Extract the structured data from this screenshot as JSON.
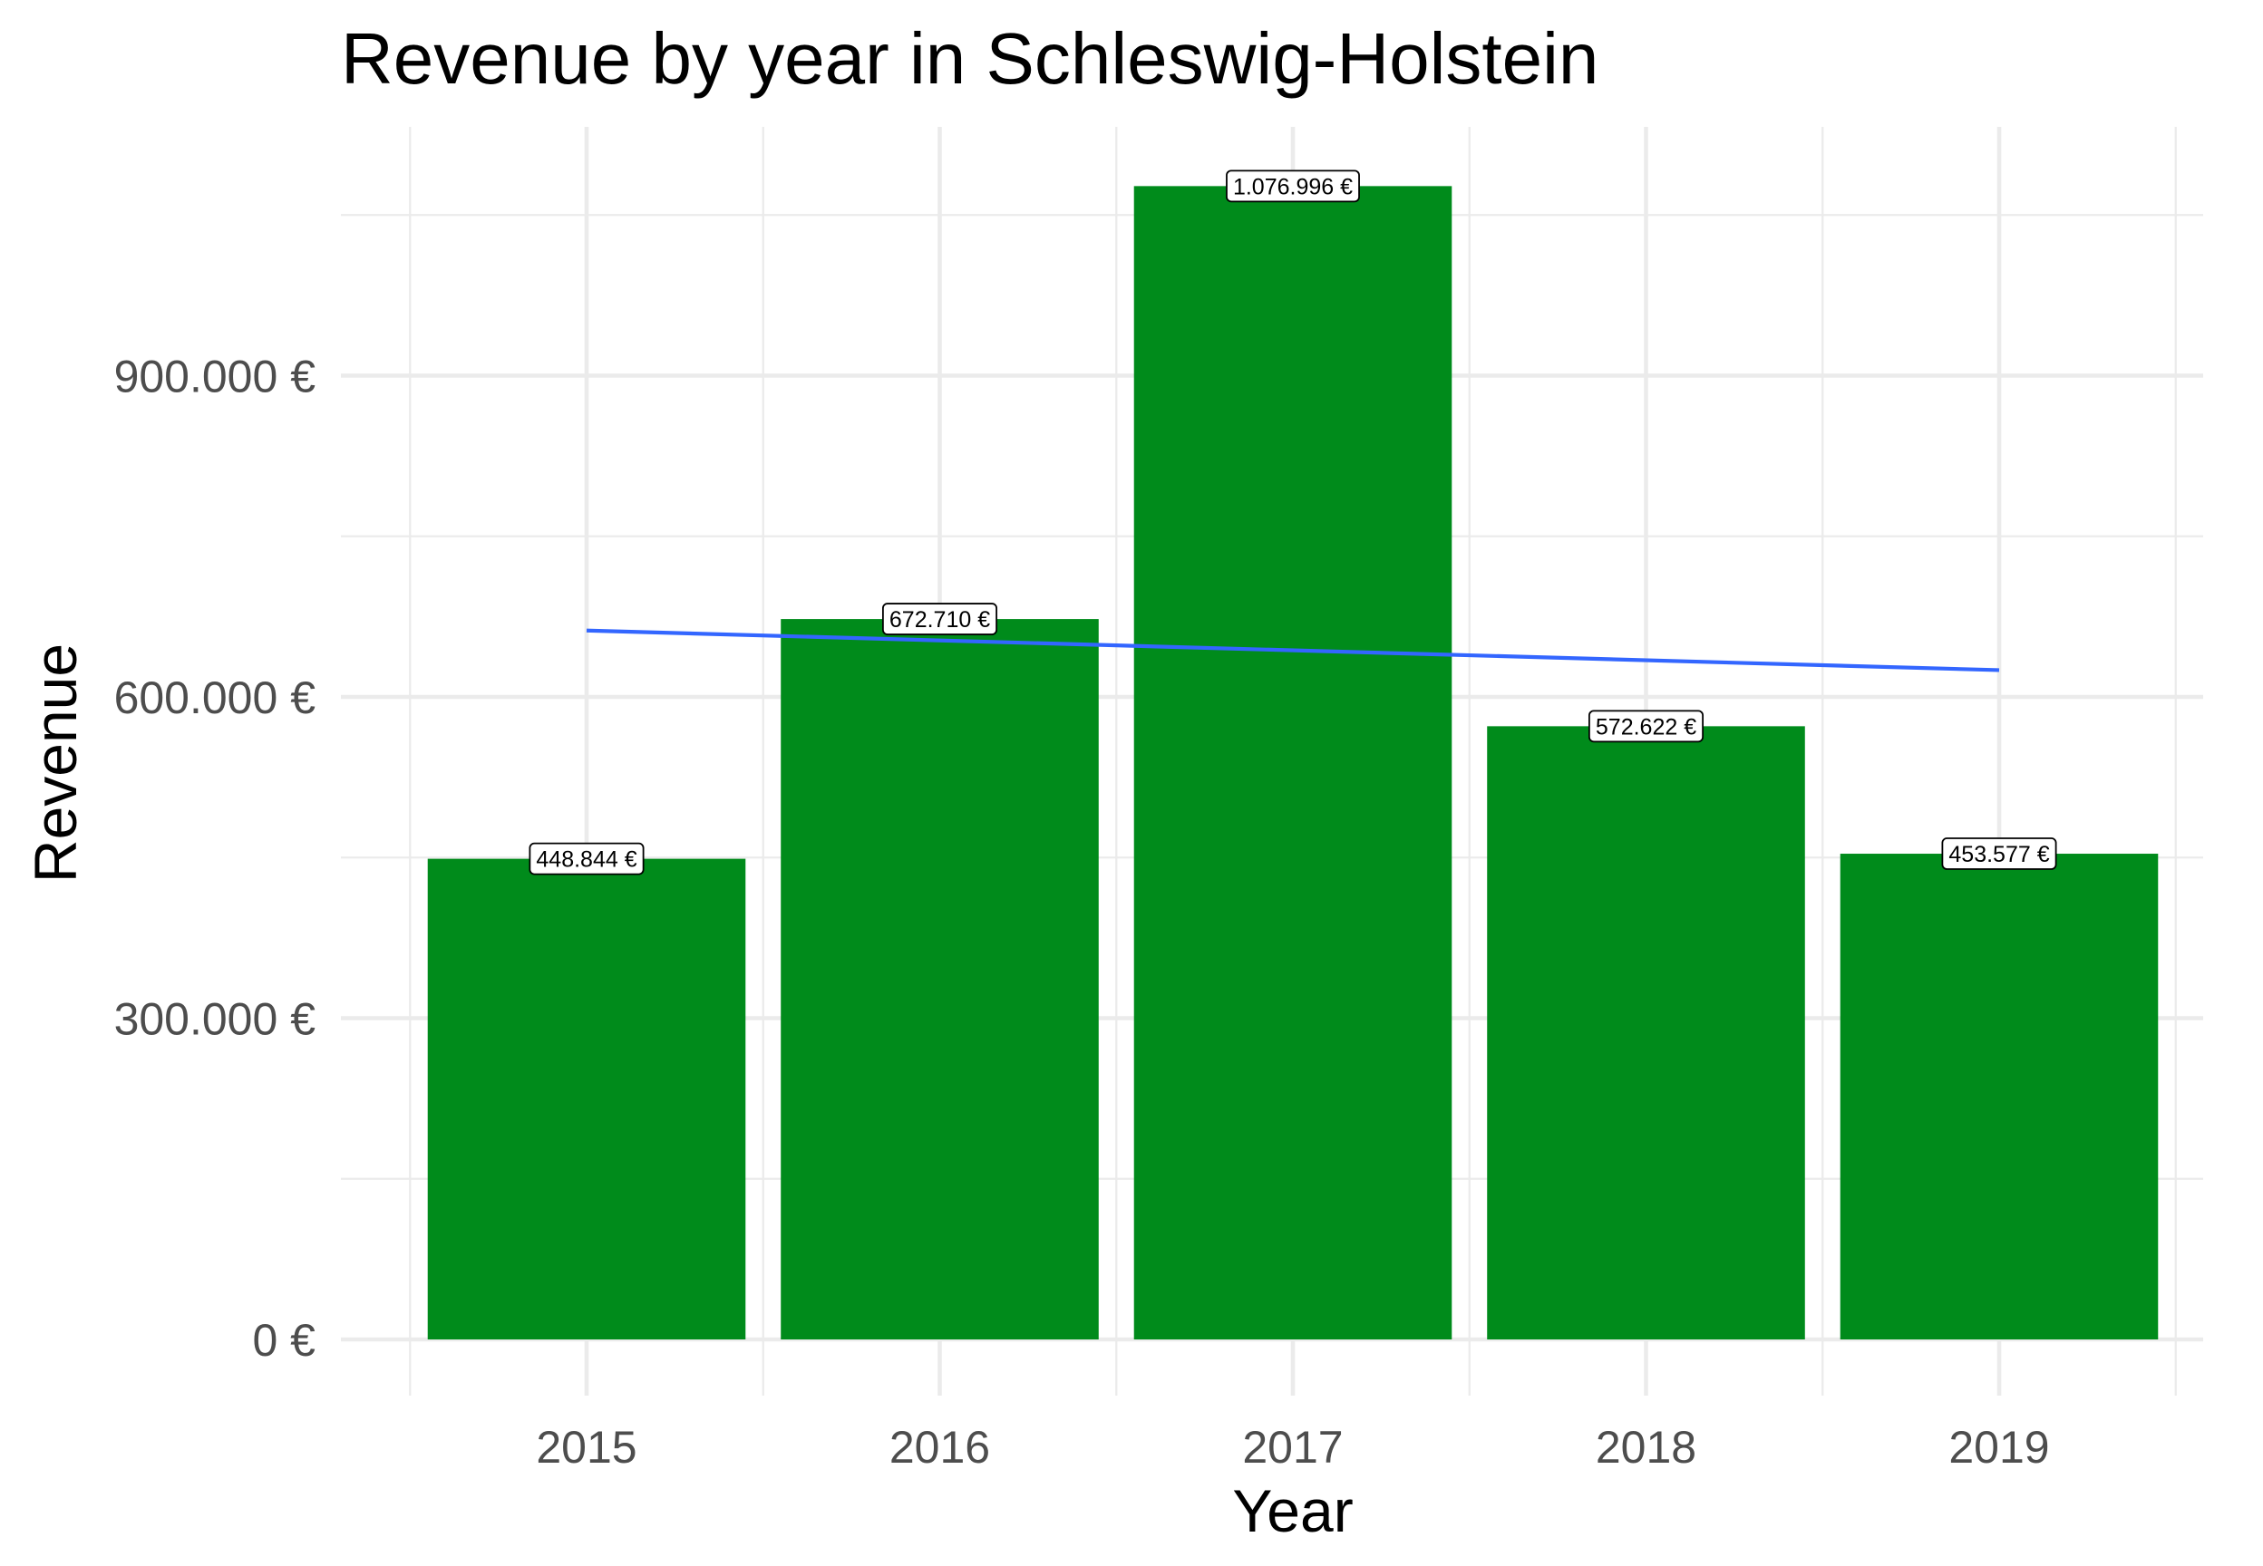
{
  "chart_data": {
    "type": "bar",
    "title": "Revenue by year in Schleswig-Holstein",
    "xlabel": "Year",
    "ylabel": "Revenue",
    "categories": [
      "2015",
      "2016",
      "2017",
      "2018",
      "2019"
    ],
    "values": [
      448844,
      672710,
      1076996,
      572622,
      453577
    ],
    "value_labels": [
      "448.844 €",
      "672.710 €",
      "1.076.996 €",
      "572.622 €",
      "453.577 €"
    ],
    "ylim": [
      0,
      1130000
    ],
    "yticks": [
      0,
      300000,
      600000,
      900000
    ],
    "ytick_labels": [
      "0 €",
      "300.000 €",
      "600.000 €",
      "900.000 €"
    ],
    "grid": true,
    "legend": "none",
    "bar_color": "#008b1b",
    "trend_line": {
      "type": "linear",
      "color": "#3366ff",
      "start": {
        "x": "2015",
        "y": 662000
      },
      "end": {
        "x": "2019",
        "y": 625000
      }
    }
  }
}
